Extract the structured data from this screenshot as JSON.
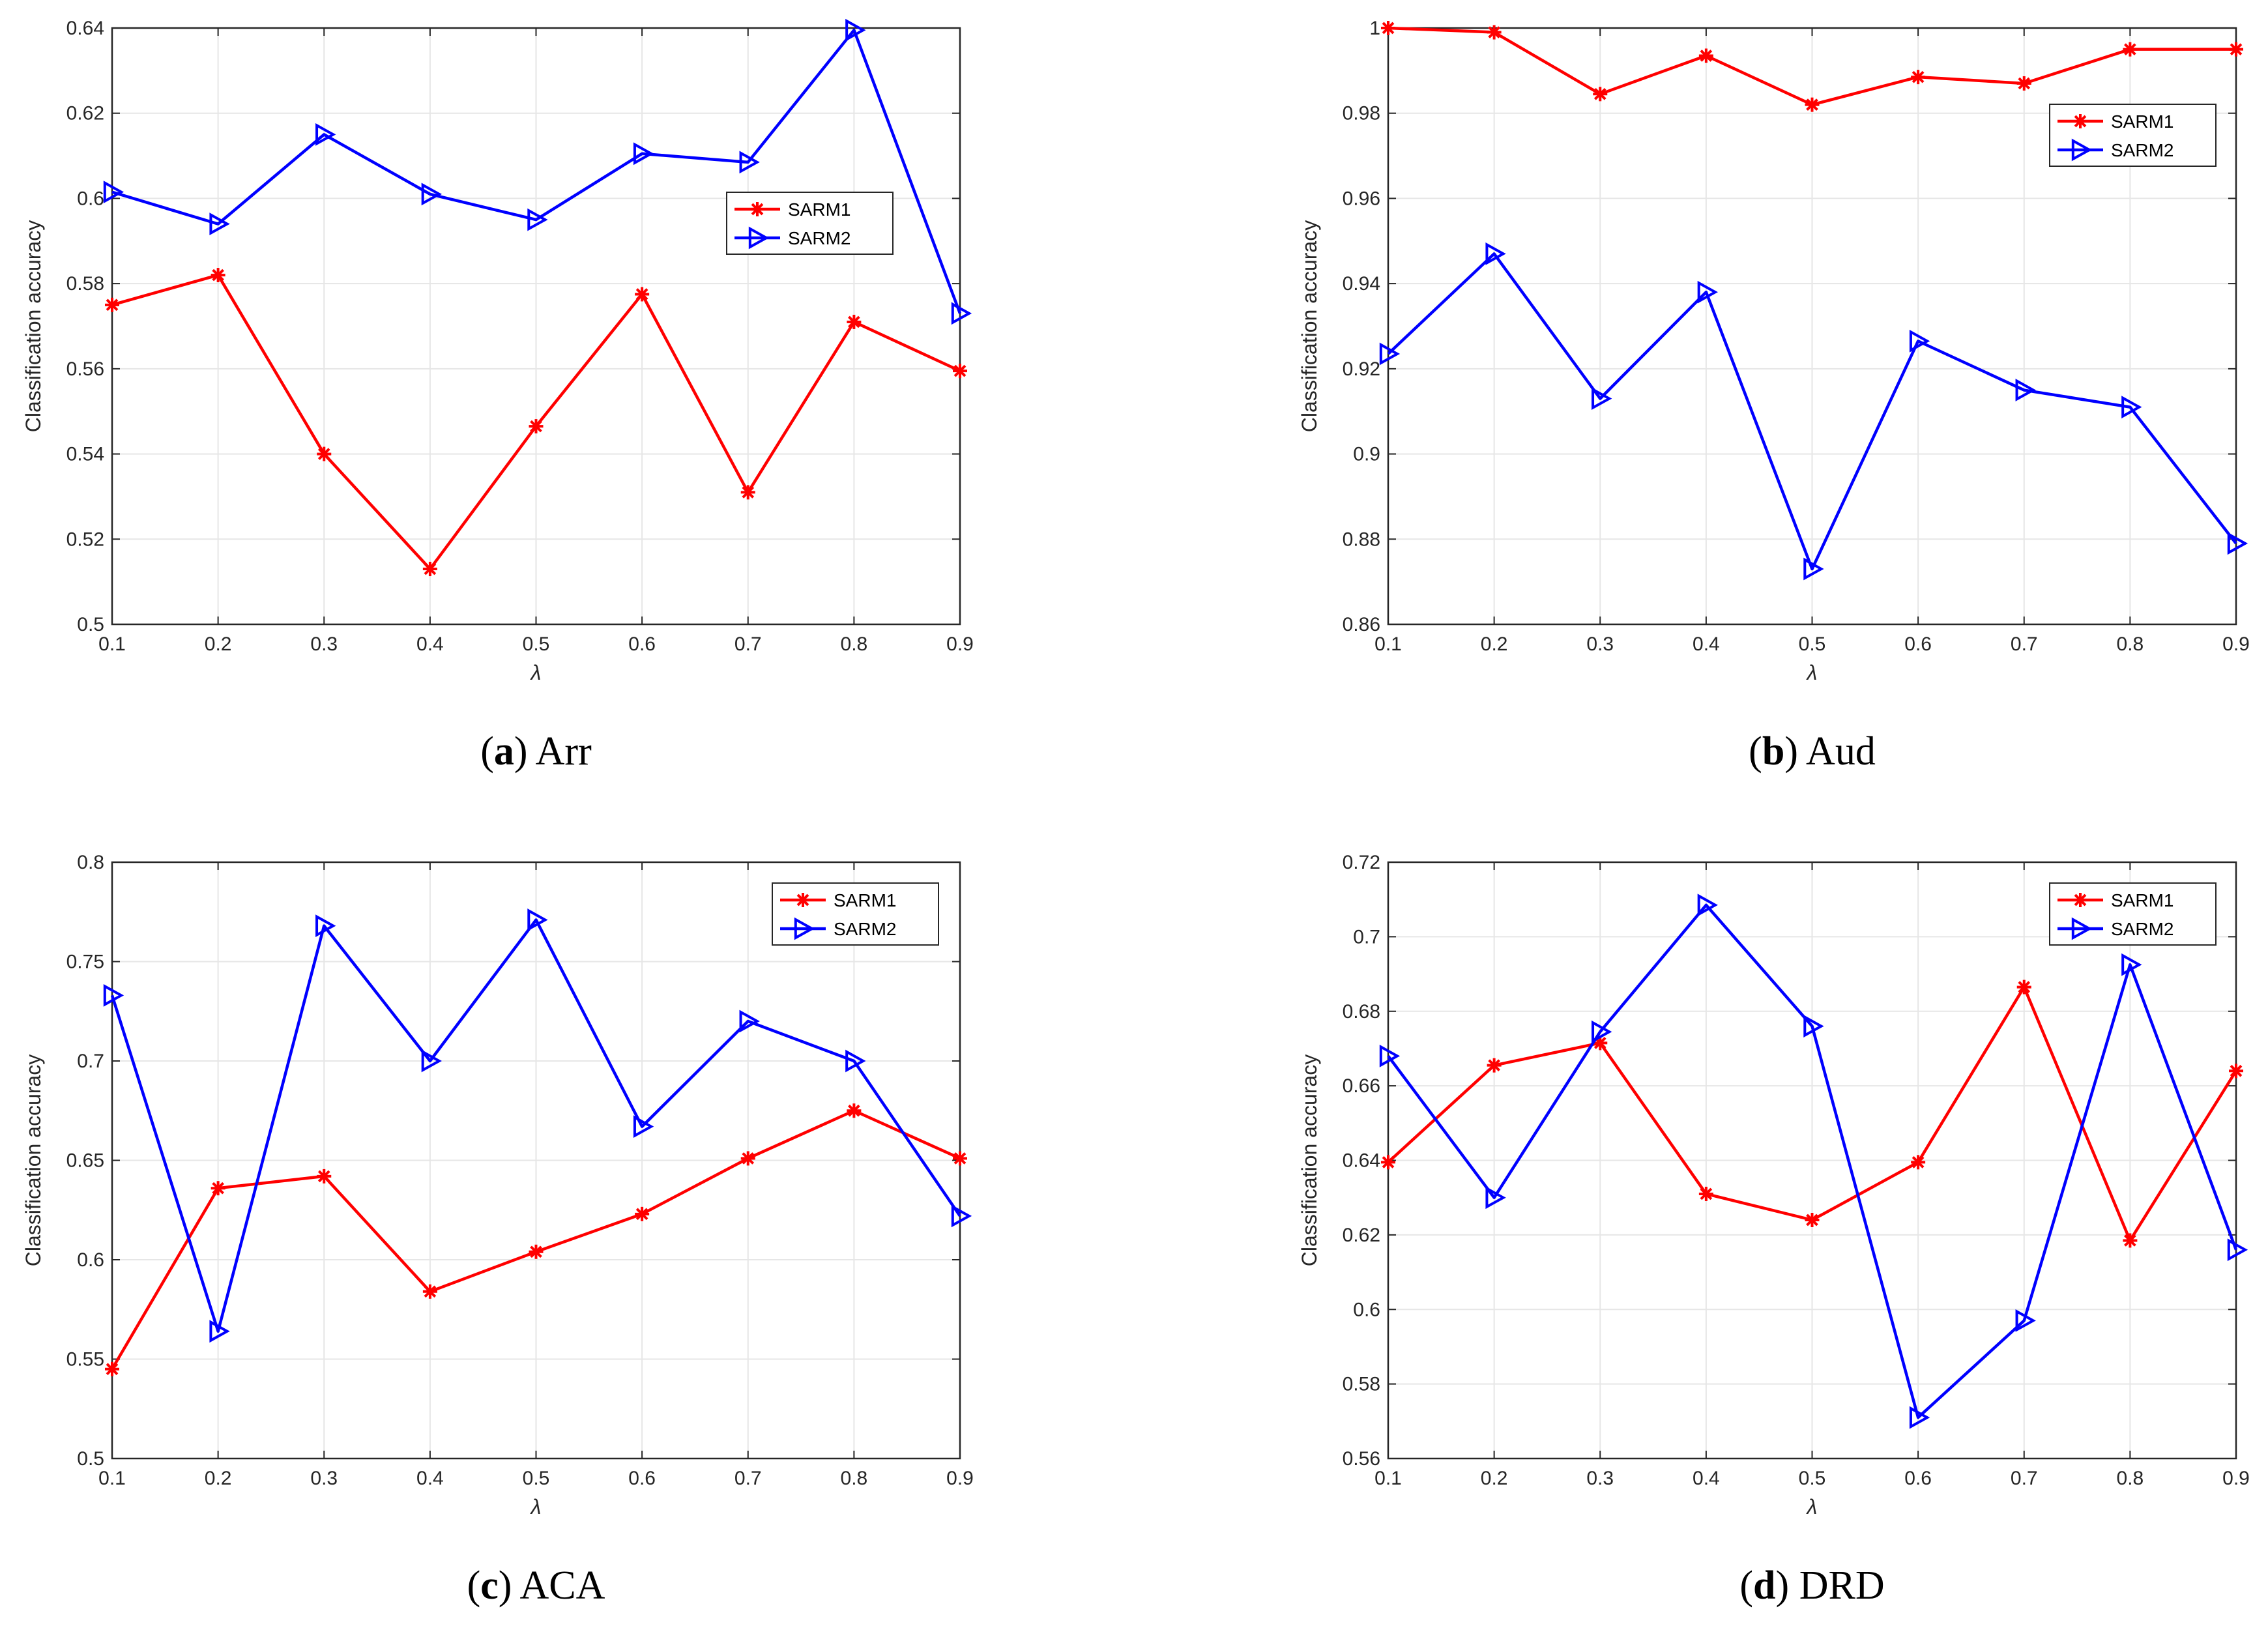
{
  "chart_data": [
    {
      "type": "line",
      "caption_letter": "a",
      "caption_text": "Arr",
      "xlabel": "λ",
      "ylabel": "Classification accuracy",
      "x": [
        0.1,
        0.2,
        0.3,
        0.4,
        0.5,
        0.6,
        0.7,
        0.8,
        0.9
      ],
      "xlim": [
        0.1,
        0.9
      ],
      "ylim": [
        0.5,
        0.64
      ],
      "xticks": [
        "0.1",
        "0.2",
        "0.3",
        "0.4",
        "0.5",
        "0.6",
        "0.7",
        "0.8",
        "0.9"
      ],
      "yticks": [
        "0.5",
        "0.52",
        "0.54",
        "0.56",
        "0.58",
        "0.6",
        "0.62",
        "0.64"
      ],
      "grid": true,
      "legend_position": "middle-right",
      "series": [
        {
          "name": "SARM1",
          "color": "#ff0000",
          "marker": "asterisk",
          "values": [
            0.575,
            0.582,
            0.54,
            0.513,
            0.5465,
            0.5775,
            0.531,
            0.571,
            0.5595
          ]
        },
        {
          "name": "SARM2",
          "color": "#0000ff",
          "marker": "triangle-right",
          "values": [
            0.6015,
            0.594,
            0.615,
            0.601,
            0.595,
            0.6105,
            0.6085,
            0.6395,
            0.573
          ]
        }
      ]
    },
    {
      "type": "line",
      "caption_letter": "b",
      "caption_text": "Aud",
      "xlabel": "λ",
      "ylabel": "Classification accuracy",
      "x": [
        0.1,
        0.2,
        0.3,
        0.4,
        0.5,
        0.6,
        0.7,
        0.8,
        0.9
      ],
      "xlim": [
        0.1,
        0.9
      ],
      "ylim": [
        0.86,
        1.0
      ],
      "xticks": [
        "0.1",
        "0.2",
        "0.3",
        "0.4",
        "0.5",
        "0.6",
        "0.7",
        "0.8",
        "0.9"
      ],
      "yticks": [
        "0.86",
        "0.88",
        "0.9",
        "0.92",
        "0.94",
        "0.96",
        "0.98",
        "1"
      ],
      "grid": true,
      "legend_position": "top-right",
      "series": [
        {
          "name": "SARM1",
          "color": "#ff0000",
          "marker": "asterisk",
          "values": [
            1.0,
            0.999,
            0.9845,
            0.9935,
            0.982,
            0.9885,
            0.987,
            0.995,
            0.995
          ]
        },
        {
          "name": "SARM2",
          "color": "#0000ff",
          "marker": "triangle-right",
          "values": [
            0.9235,
            0.947,
            0.913,
            0.938,
            0.873,
            0.9265,
            0.915,
            0.911,
            0.879
          ]
        }
      ]
    },
    {
      "type": "line",
      "caption_letter": "c",
      "caption_text": "ACA",
      "xlabel": "λ",
      "ylabel": "Classification accuracy",
      "x": [
        0.1,
        0.2,
        0.3,
        0.4,
        0.5,
        0.6,
        0.7,
        0.8,
        0.9
      ],
      "xlim": [
        0.1,
        0.9
      ],
      "ylim": [
        0.5,
        0.8
      ],
      "xticks": [
        "0.1",
        "0.2",
        "0.3",
        "0.4",
        "0.5",
        "0.6",
        "0.7",
        "0.8",
        "0.9"
      ],
      "yticks": [
        "0.5",
        "0.55",
        "0.6",
        "0.65",
        "0.7",
        "0.75",
        "0.8"
      ],
      "grid": true,
      "legend_position": "top-right",
      "series": [
        {
          "name": "SARM1",
          "color": "#ff0000",
          "marker": "asterisk",
          "values": [
            0.545,
            0.636,
            0.642,
            0.584,
            0.604,
            0.623,
            0.651,
            0.675,
            0.651
          ]
        },
        {
          "name": "SARM2",
          "color": "#0000ff",
          "marker": "triangle-right",
          "values": [
            0.733,
            0.564,
            0.768,
            0.7,
            0.771,
            0.667,
            0.72,
            0.7,
            0.622
          ]
        }
      ]
    },
    {
      "type": "line",
      "caption_letter": "d",
      "caption_text": "DRD",
      "xlabel": "λ",
      "ylabel": "Classification accuracy",
      "x": [
        0.1,
        0.2,
        0.3,
        0.4,
        0.5,
        0.6,
        0.7,
        0.8,
        0.9
      ],
      "xlim": [
        0.1,
        0.9
      ],
      "ylim": [
        0.56,
        0.72
      ],
      "xticks": [
        "0.1",
        "0.2",
        "0.3",
        "0.4",
        "0.5",
        "0.6",
        "0.7",
        "0.8",
        "0.9"
      ],
      "yticks": [
        "0.56",
        "0.58",
        "0.6",
        "0.62",
        "0.64",
        "0.66",
        "0.68",
        "0.7",
        "0.72"
      ],
      "grid": true,
      "legend_position": "top-right",
      "series": [
        {
          "name": "SARM1",
          "color": "#ff0000",
          "marker": "asterisk",
          "values": [
            0.6395,
            0.6655,
            0.6715,
            0.631,
            0.624,
            0.6395,
            0.6865,
            0.6185,
            0.664
          ]
        },
        {
          "name": "SARM2",
          "color": "#0000ff",
          "marker": "triangle-right",
          "values": [
            0.668,
            0.63,
            0.6745,
            0.7085,
            0.676,
            0.571,
            0.597,
            0.6925,
            0.616
          ]
        }
      ]
    }
  ]
}
